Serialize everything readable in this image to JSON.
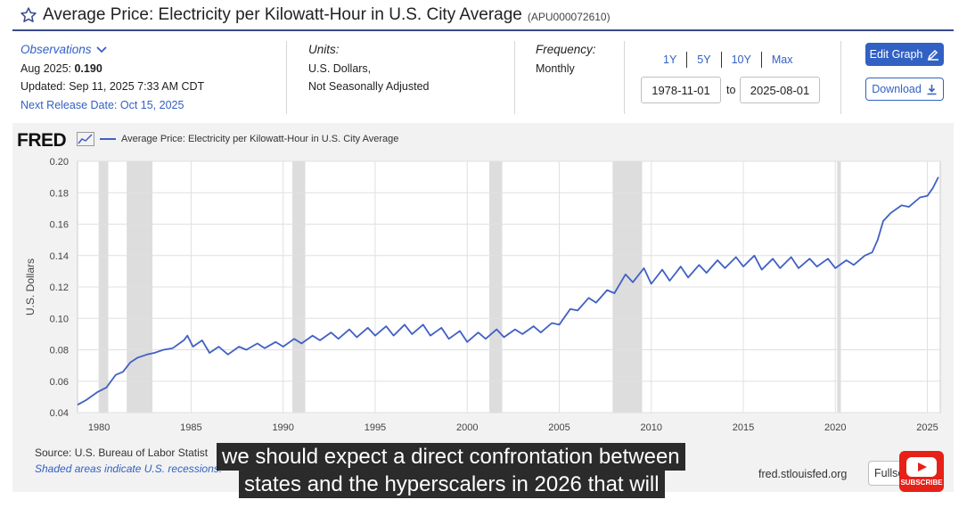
{
  "header": {
    "title": "Average Price: Electricity per Kilowatt-Hour in U.S. City Average",
    "series_id": "(APU000072610)"
  },
  "observations": {
    "label": "Observations",
    "date_label": "Aug 2025:",
    "value": "0.190",
    "updated": "Updated: Sep 11, 2025 7:33 AM CDT",
    "next_release": "Next Release Date: Oct 15, 2025"
  },
  "units": {
    "label": "Units:",
    "line1": "U.S. Dollars,",
    "line2": "Not Seasonally Adjusted"
  },
  "frequency": {
    "label": "Frequency:",
    "value": "Monthly"
  },
  "range_buttons": [
    "1Y",
    "5Y",
    "10Y",
    "Max"
  ],
  "date_range": {
    "start": "1978-11-01",
    "to": "to",
    "end": "2025-08-01"
  },
  "buttons": {
    "edit": "Edit Graph",
    "download": "Download",
    "fullscreen": "Fullscreen"
  },
  "footer": {
    "source": "Source: U.S. Bureau of Labor Statist",
    "shaded": "Shaded areas indicate U.S. recessions.",
    "url": "fred.stlouisfed.org"
  },
  "logo": "FRED",
  "captions": [
    "we should expect a direct confrontation between",
    "states and the hyperscalers in 2026 that will"
  ],
  "subscribe": "SUBSCRIBE",
  "colors": {
    "accent": "#3261c4",
    "series": "#4060c4",
    "recession": "#dddddd",
    "rule": "#3b4a8c"
  },
  "chart_data": {
    "type": "line",
    "legend": "Average Price: Electricity per Kilowatt-Hour in U.S. City Average",
    "ylabel": "U.S. Dollars",
    "xlim": [
      1978.83,
      2025.7
    ],
    "ylim": [
      0.04,
      0.2
    ],
    "yticks": [
      "0.04",
      "0.06",
      "0.08",
      "0.10",
      "0.12",
      "0.14",
      "0.16",
      "0.18",
      "0.20"
    ],
    "xticks": [
      "1980",
      "1985",
      "1990",
      "1995",
      "2000",
      "2005",
      "2010",
      "2015",
      "2020",
      "2025"
    ],
    "grid": true,
    "recessions": [
      [
        1980.0,
        1980.5
      ],
      [
        1981.5,
        1982.9
      ],
      [
        1990.5,
        1991.2
      ],
      [
        2001.2,
        2001.9
      ],
      [
        2007.9,
        2009.5
      ],
      [
        2020.1,
        2020.3
      ]
    ],
    "series": [
      {
        "x": [
          1978.83,
          1979.3,
          1979.9,
          1980.4,
          1980.9,
          1981.3,
          1981.7,
          1982.1,
          1982.6,
          1983.0,
          1983.5,
          1984.0,
          1984.6,
          1984.8,
          1985.1,
          1985.6,
          1986.0,
          1986.5,
          1987.0,
          1987.6,
          1988.0,
          1988.6,
          1989.0,
          1989.6,
          1990.0,
          1990.6,
          1991.0,
          1991.6,
          1992.0,
          1992.6,
          1993.0,
          1993.6,
          1994.0,
          1994.6,
          1995.0,
          1995.6,
          1996.0,
          1996.6,
          1997.0,
          1997.6,
          1998.0,
          1998.6,
          1999.0,
          1999.6,
          2000.0,
          2000.6,
          2001.0,
          2001.6,
          2002.0,
          2002.6,
          2003.0,
          2003.6,
          2004.0,
          2004.6,
          2005.0,
          2005.6,
          2006.0,
          2006.6,
          2007.0,
          2007.6,
          2008.0,
          2008.6,
          2009.0,
          2009.6,
          2010.0,
          2010.6,
          2011.0,
          2011.6,
          2012.0,
          2012.6,
          2013.0,
          2013.6,
          2014.0,
          2014.6,
          2015.0,
          2015.6,
          2016.0,
          2016.6,
          2017.0,
          2017.6,
          2018.0,
          2018.6,
          2019.0,
          2019.6,
          2020.0,
          2020.6,
          2021.0,
          2021.6,
          2022.0,
          2022.3,
          2022.6,
          2023.0,
          2023.6,
          2024.0,
          2024.6,
          2025.0,
          2025.3,
          2025.6
        ],
        "values": [
          0.045,
          0.048,
          0.053,
          0.056,
          0.064,
          0.066,
          0.072,
          0.075,
          0.077,
          0.078,
          0.08,
          0.081,
          0.086,
          0.089,
          0.082,
          0.086,
          0.078,
          0.082,
          0.077,
          0.082,
          0.08,
          0.084,
          0.081,
          0.085,
          0.082,
          0.087,
          0.084,
          0.089,
          0.086,
          0.091,
          0.087,
          0.093,
          0.088,
          0.094,
          0.089,
          0.095,
          0.089,
          0.096,
          0.09,
          0.096,
          0.089,
          0.094,
          0.087,
          0.092,
          0.085,
          0.091,
          0.087,
          0.093,
          0.088,
          0.093,
          0.09,
          0.095,
          0.091,
          0.097,
          0.096,
          0.106,
          0.105,
          0.113,
          0.11,
          0.118,
          0.116,
          0.128,
          0.123,
          0.132,
          0.122,
          0.131,
          0.124,
          0.133,
          0.126,
          0.134,
          0.129,
          0.137,
          0.132,
          0.139,
          0.133,
          0.14,
          0.131,
          0.138,
          0.132,
          0.139,
          0.132,
          0.138,
          0.133,
          0.138,
          0.132,
          0.137,
          0.134,
          0.14,
          0.142,
          0.15,
          0.162,
          0.167,
          0.172,
          0.171,
          0.177,
          0.178,
          0.183,
          0.19
        ]
      }
    ]
  }
}
